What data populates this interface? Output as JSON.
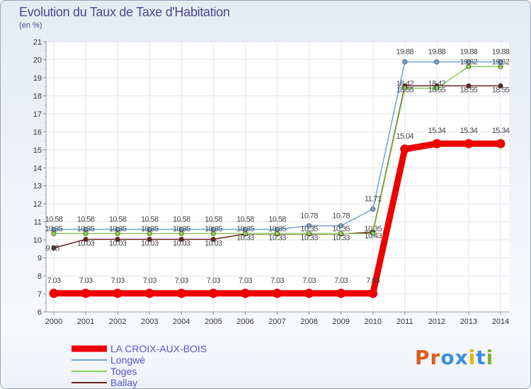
{
  "header": {
    "title": "Evolution du Taux de Taxe d'Habitation",
    "unit": "(en %)"
  },
  "logo": {
    "text": "Proxiti",
    "letters": [
      "P",
      "r",
      "o",
      "x",
      "i",
      "t",
      "i"
    ],
    "colors": [
      "#e05a1a",
      "#e05a1a",
      "#3a8ede",
      "#3a8ede",
      "#e8b000",
      "#3a8ede",
      "#7ab52a"
    ]
  },
  "chart_data": {
    "type": "line",
    "title": "Evolution du Taux de Taxe d'Habitation",
    "ylabel": "(en %)",
    "xlabel": "",
    "ylim": [
      6,
      21
    ],
    "yticks": [
      6,
      7,
      8,
      9,
      10,
      11,
      12,
      13,
      14,
      15,
      16,
      17,
      18,
      19,
      20,
      21
    ],
    "categories": [
      "2000",
      "2001",
      "2002",
      "2003",
      "2004",
      "2005",
      "2006",
      "2007",
      "2008",
      "2009",
      "2010",
      "2011",
      "2012",
      "2013",
      "2014"
    ],
    "series": [
      {
        "name": "LA CROIX-AUX-BOIS",
        "color": "#ee0000",
        "labels": [
          "7.03",
          "7.03",
          "7.03",
          "7.03",
          "7.03",
          "7.03",
          "7.03",
          "7.03",
          "7.03",
          "7.03",
          "7.03",
          "15.04",
          "15.34",
          "15.34",
          "15.34"
        ],
        "values": [
          7.03,
          7.03,
          7.03,
          7.03,
          7.03,
          7.03,
          7.03,
          7.03,
          7.03,
          7.03,
          7.03,
          15.04,
          15.34,
          15.34,
          15.34
        ]
      },
      {
        "name": "Longwé",
        "color": "#6fa3d6",
        "labels": [
          "10.58",
          "10.58",
          "10.58",
          "10.58",
          "10.58",
          "10.58",
          "10.58",
          "10.58",
          "10.78",
          "10.78",
          "11.71",
          "19.88",
          "19.88",
          "19.88",
          "19.88"
        ],
        "values": [
          10.58,
          10.58,
          10.58,
          10.58,
          10.58,
          10.58,
          10.58,
          10.58,
          10.78,
          10.78,
          11.71,
          19.88,
          19.88,
          19.88,
          19.88
        ]
      },
      {
        "name": "Toges",
        "color": "#88cc55",
        "labels": [
          "10.35",
          "10.35",
          "10.35",
          "10.35",
          "10.35",
          "10.35",
          "10.35",
          "10.35",
          "10.35",
          "10.35",
          "10.35",
          "18.42",
          "18.42",
          "19.62",
          "19.62"
        ],
        "values": [
          10.35,
          10.35,
          10.35,
          10.35,
          10.35,
          10.35,
          10.35,
          10.35,
          10.35,
          10.35,
          10.35,
          18.42,
          18.42,
          19.62,
          19.62
        ]
      },
      {
        "name": "Ballay",
        "color": "#6b2222",
        "labels": [
          "9.55",
          "10.03",
          "10.03",
          "10.03",
          "10.03",
          "10.03",
          "10.33",
          "10.33",
          "10.33",
          "10.33",
          "10.43",
          "18.55",
          "18.55",
          "18.55",
          "18.55"
        ],
        "values": [
          9.55,
          10.03,
          10.03,
          10.03,
          10.03,
          10.03,
          10.33,
          10.33,
          10.33,
          10.33,
          10.43,
          18.55,
          18.55,
          18.55,
          18.55
        ]
      }
    ]
  }
}
